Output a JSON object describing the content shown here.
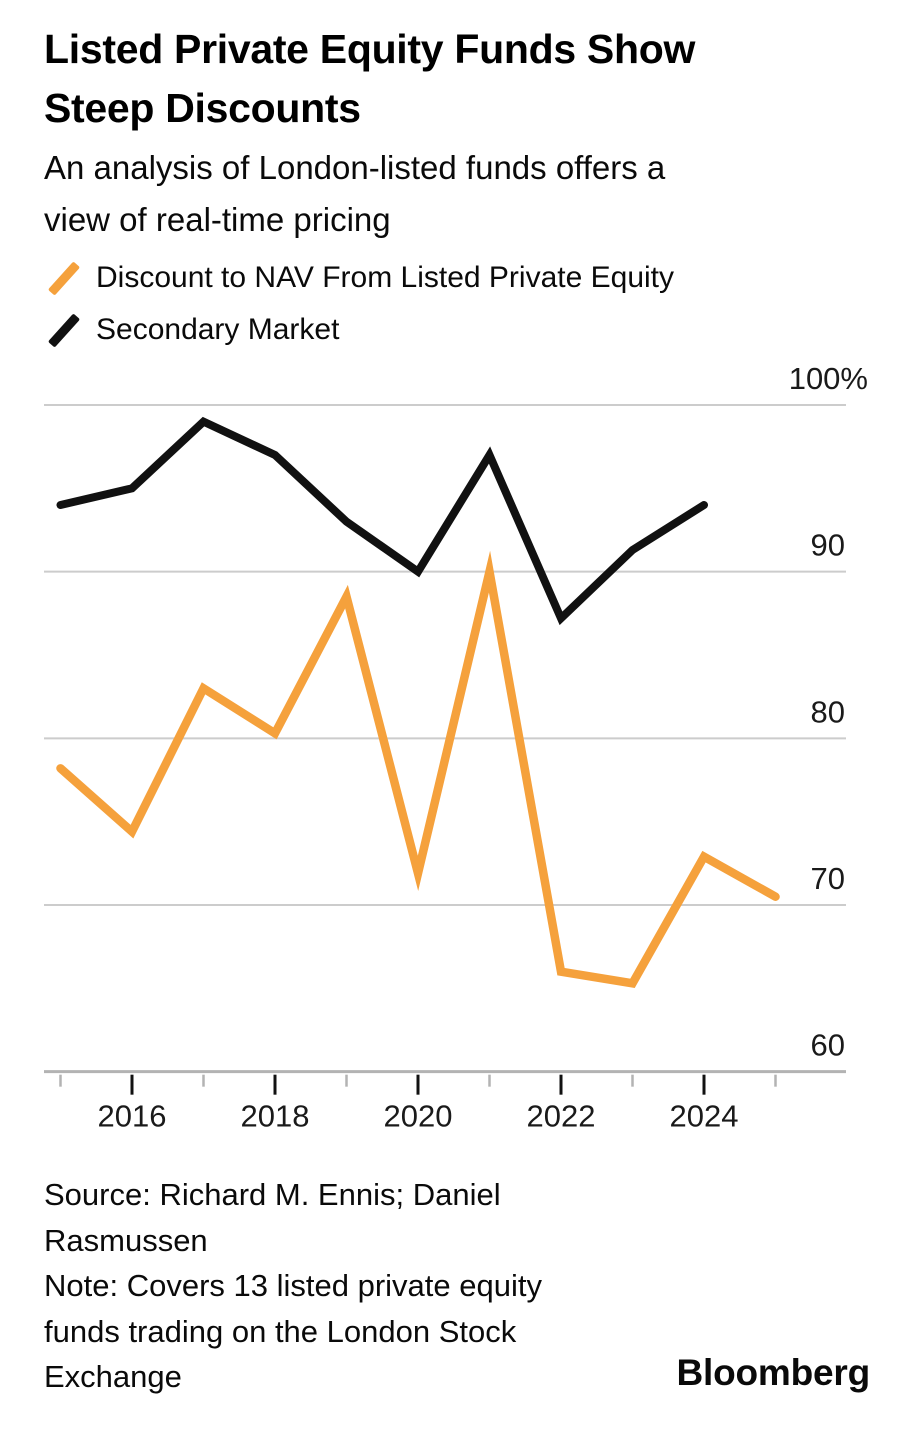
{
  "header": {
    "title_line1": "Listed Private Equity Funds Show",
    "title_line2": "Steep Discounts",
    "subtitle_line1": "An analysis of London-listed funds offers a",
    "subtitle_line2": "view of real-time pricing"
  },
  "legend": {
    "items": [
      {
        "label": "Discount to NAV From Listed Private Equity",
        "color": "#F5A13C"
      },
      {
        "label": "Secondary Market",
        "color": "#111111"
      }
    ]
  },
  "chart_data": {
    "type": "line",
    "title": "Listed Private Equity Funds Show Steep Discounts",
    "x": [
      2015,
      2016,
      2017,
      2018,
      2019,
      2020,
      2021,
      2022,
      2023,
      2024,
      2025
    ],
    "series": [
      {
        "name": "Discount to NAV From Listed Private Equity",
        "color": "#F5A13C",
        "values": [
          78.2,
          74.4,
          83.0,
          80.3,
          88.5,
          71.9,
          90.0,
          66.0,
          65.3,
          72.9,
          70.5
        ]
      },
      {
        "name": "Secondary Market",
        "color": "#111111",
        "values": [
          94.0,
          95.0,
          99.0,
          97.0,
          93.0,
          90.0,
          97.0,
          87.2,
          91.3,
          94.0,
          null
        ]
      }
    ],
    "ylim": [
      60,
      100
    ],
    "yticks": [
      100,
      90,
      80,
      70,
      60
    ],
    "ytick_labels": [
      "100%",
      "90",
      "80",
      "70",
      "60"
    ],
    "xticks_major": [
      2016,
      2018,
      2020,
      2022,
      2024
    ],
    "xtick_major_labels": [
      "2016",
      "2018",
      "2020",
      "2022",
      "2024"
    ],
    "xticks_minor": [
      2015,
      2017,
      2019,
      2021,
      2023,
      2025
    ],
    "grid": "horizontal",
    "legend_position": "top-left",
    "colors": {
      "gridline": "#cccccc",
      "axis": "#b3b3b3",
      "tick_major": "#111111",
      "tick_minor": "#b3b3b3",
      "tick_label": "#1a1a1a"
    }
  },
  "footer": {
    "source_line1": "Source: Richard M. Ennis; Daniel",
    "source_line2": "Rasmussen",
    "note_line1": "Note: Covers 13 listed private equity",
    "note_line2": "funds trading on the London Stock",
    "note_line3": "Exchange",
    "brand": "Bloomberg"
  }
}
